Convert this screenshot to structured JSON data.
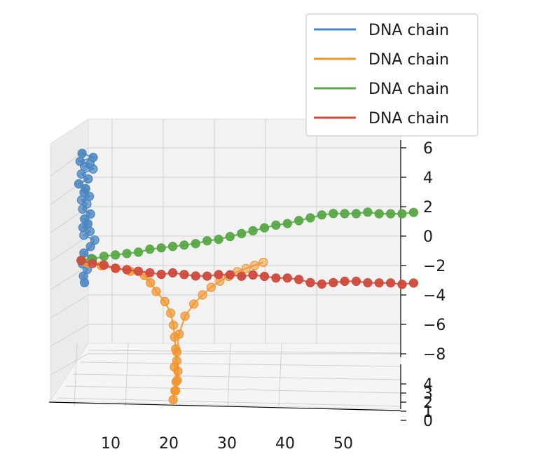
{
  "chart_data": {
    "type": "scatter",
    "projection": "3d",
    "title": "",
    "xlabel": "",
    "ylabel": "",
    "zlabel": "",
    "grid": true,
    "legend": "top-right",
    "x_ticks": [
      "10",
      "20",
      "30",
      "40",
      "50"
    ],
    "y_ticks": [
      "0",
      "1",
      "2",
      "3",
      "4"
    ],
    "z_ticks": [
      "−8",
      "−6",
      "−4",
      "−2",
      "0",
      "2",
      "4",
      "6"
    ],
    "xlim": [
      0,
      60
    ],
    "ylim": [
      -1,
      4
    ],
    "zlim": [
      -9,
      6.5
    ],
    "series": [
      {
        "name": "DNA chain",
        "color": "#4a86c0",
        "x": [
          1.2,
          3.1,
          0.8,
          2.5,
          1.5,
          3.0,
          1.0,
          2.2,
          0.6,
          1.8,
          1.5,
          2.4,
          1.0,
          1.9,
          1.2,
          2.6,
          1.6,
          2.2,
          1.3,
          2.5,
          1.4,
          3.3,
          2.6,
          1.5,
          2.8,
          1.2,
          2.0,
          1.4,
          1.6
        ],
        "y": [
          0.2,
          0.5,
          0.8,
          1.1,
          1.4,
          1.6,
          1.2,
          0.9,
          0.5,
          0.3,
          0.7,
          1.0,
          1.5,
          1.8,
          1.4,
          1.0,
          0.6,
          0.4,
          0.8,
          1.2,
          1.6,
          1.3,
          0.9,
          0.5,
          0.7,
          1.1,
          1.4,
          0.8,
          0.4
        ],
        "z": [
          6.0,
          5.7,
          5.4,
          5.2,
          5.0,
          4.8,
          4.5,
          4.2,
          3.9,
          3.6,
          3.3,
          3.0,
          2.7,
          2.4,
          2.1,
          1.8,
          1.5,
          1.2,
          0.9,
          0.6,
          0.3,
          0.0,
          -0.4,
          -0.8,
          -1.2,
          -1.6,
          -2.0,
          -2.4,
          -2.8
        ]
      },
      {
        "name": "DNA chain",
        "color": "#f0952e",
        "x": [
          2.0,
          4.5,
          7.0,
          9.5,
          12.0,
          13.0,
          14.0,
          15.5,
          16.5,
          17.0,
          17.2,
          17.4,
          17.6,
          17.8,
          17.5,
          17.3,
          17.0,
          17.4,
          17.7,
          17.2,
          17.6,
          18.0,
          19.0,
          20.5,
          22.0,
          23.5,
          25.0,
          26.5,
          28.0,
          29.5,
          31.0,
          32.5
        ],
        "y": [
          0.8,
          0.9,
          1.0,
          1.1,
          1.2,
          1.3,
          1.4,
          1.5,
          1.6,
          1.5,
          1.4,
          1.3,
          1.2,
          1.1,
          1.0,
          0.9,
          0.8,
          0.9,
          1.0,
          1.1,
          1.2,
          1.4,
          1.6,
          1.8,
          2.0,
          2.2,
          2.4,
          2.6,
          2.8,
          3.0,
          3.1,
          3.2
        ],
        "z": [
          -1.5,
          -1.7,
          -1.9,
          -2.1,
          -2.4,
          -2.9,
          -3.5,
          -4.2,
          -5.0,
          -5.8,
          -6.6,
          -7.4,
          -8.2,
          -8.9,
          -9.6,
          -10.2,
          -10.8,
          -10.2,
          -9.5,
          -8.6,
          -7.6,
          -6.4,
          -5.2,
          -4.4,
          -3.8,
          -3.3,
          -2.9,
          -2.6,
          -2.3,
          -2.1,
          -1.9,
          -1.7
        ]
      },
      {
        "name": "DNA chain",
        "color": "#57a844",
        "x": [
          1,
          3,
          5,
          7,
          9,
          11,
          13,
          15,
          17,
          19,
          21,
          23,
          25,
          27,
          29,
          31,
          33,
          35,
          37,
          39,
          41,
          43,
          45,
          47,
          49,
          51,
          53,
          55,
          57,
          59
        ],
        "y": [
          0.5,
          0.4,
          0.3,
          0.2,
          0.2,
          0.1,
          0.1,
          0.0,
          0.0,
          -0.1,
          -0.1,
          -0.2,
          -0.2,
          -0.3,
          -0.3,
          -0.4,
          -0.4,
          -0.5,
          -0.5,
          -0.5,
          -0.6,
          -0.6,
          -0.6,
          -0.7,
          -0.7,
          -0.7,
          -0.8,
          -0.8,
          -0.8,
          -0.9
        ],
        "z": [
          -1.3,
          -1.2,
          -1.0,
          -0.9,
          -0.8,
          -0.7,
          -0.5,
          -0.4,
          -0.3,
          -0.2,
          -0.1,
          0.1,
          0.2,
          0.4,
          0.6,
          0.8,
          1.0,
          1.2,
          1.3,
          1.5,
          1.7,
          1.9,
          2.0,
          2.0,
          2.0,
          2.1,
          2.0,
          2.0,
          2.0,
          2.1
        ]
      },
      {
        "name": "DNA chain",
        "color": "#cf4a3c",
        "x": [
          1,
          3,
          5,
          7,
          9,
          11,
          13,
          15,
          17,
          19,
          21,
          23,
          25,
          27,
          29,
          31,
          33,
          35,
          37,
          39,
          41,
          43,
          45,
          47,
          49,
          51,
          53,
          55,
          57,
          59
        ],
        "y": [
          0.5,
          0.4,
          0.3,
          0.2,
          0.2,
          0.1,
          0.1,
          0.0,
          0.0,
          -0.1,
          -0.1,
          -0.2,
          -0.2,
          -0.3,
          -0.3,
          -0.4,
          -0.4,
          -0.5,
          -0.5,
          -0.5,
          -0.6,
          -0.6,
          -0.6,
          -0.7,
          -0.7,
          -0.7,
          -0.8,
          -0.8,
          -0.8,
          -0.9
        ],
        "z": [
          -1.3,
          -1.5,
          -1.6,
          -1.8,
          -1.9,
          -2.0,
          -2.1,
          -2.2,
          -2.1,
          -2.2,
          -2.3,
          -2.3,
          -2.2,
          -2.2,
          -2.3,
          -2.2,
          -2.3,
          -2.4,
          -2.4,
          -2.5,
          -2.7,
          -2.8,
          -2.7,
          -2.6,
          -2.6,
          -2.7,
          -2.7,
          -2.7,
          -2.8,
          -2.7
        ]
      }
    ]
  }
}
